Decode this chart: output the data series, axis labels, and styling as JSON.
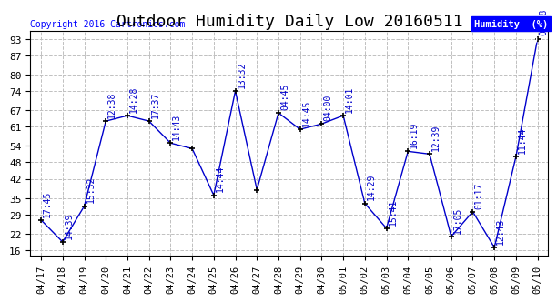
{
  "title": "Outdoor Humidity Daily Low 20160511",
  "copyright": "Copyright 2016 Cartronics.com",
  "legend_label": "Humidity  (%)",
  "x_labels": [
    "04/17",
    "04/18",
    "04/19",
    "04/20",
    "04/21",
    "04/22",
    "04/23",
    "04/24",
    "04/25",
    "04/26",
    "04/27",
    "04/28",
    "04/29",
    "04/30",
    "05/01",
    "05/02",
    "05/03",
    "05/04",
    "05/05",
    "05/06",
    "05/07",
    "05/08",
    "05/09",
    "05/10"
  ],
  "y_values": [
    27,
    19,
    32,
    63,
    65,
    63,
    55,
    53,
    36,
    74,
    38,
    66,
    60,
    62,
    65,
    33,
    24,
    52,
    51,
    21,
    30,
    17,
    50,
    93
  ],
  "point_labels": [
    "17:45",
    "14:39",
    "15:32",
    "12:38",
    "14:28",
    "17:37",
    "14:43",
    "",
    "14:44",
    "13:32",
    "",
    "04:45",
    "14:45",
    "04:00",
    "14:01",
    "14:29",
    "15:41",
    "16:19",
    "12:39",
    "17:05",
    "01:17",
    "12:43",
    "11:44",
    "07:88"
  ],
  "line_color": "#0000cc",
  "marker_color": "#000000",
  "bg_color": "#ffffff",
  "plot_bg_color": "#ffffff",
  "grid_color": "#c0c0c0",
  "title_fontsize": 13,
  "annotation_fontsize": 7,
  "yticks": [
    16,
    22,
    29,
    35,
    42,
    48,
    54,
    61,
    67,
    74,
    80,
    87,
    93
  ],
  "ylim": [
    14,
    96
  ],
  "xlim": [
    -0.5,
    23.5
  ]
}
